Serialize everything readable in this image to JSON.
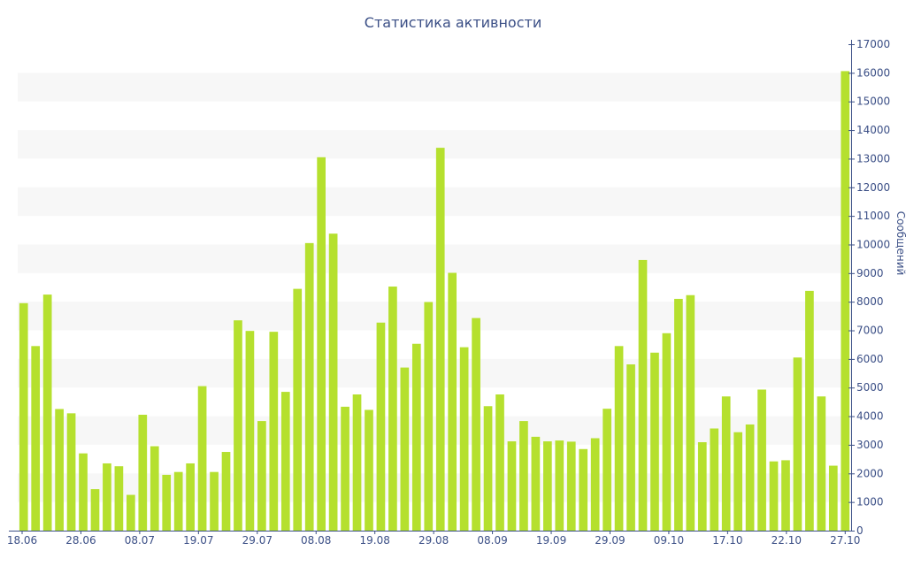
{
  "chart_data": {
    "type": "bar",
    "title": "Статистика активности",
    "xlabel": "",
    "ylabel": "Сообщений",
    "ylim": [
      0,
      17000
    ],
    "y_ticks": [
      0,
      1000,
      2000,
      3000,
      4000,
      5000,
      6000,
      7000,
      8000,
      9000,
      10000,
      11000,
      12000,
      13000,
      14000,
      15000,
      16000,
      17000
    ],
    "x_tick_labels": [
      "18.06",
      "28.06",
      "08.07",
      "19.07",
      "29.07",
      "08.08",
      "19.08",
      "29.08",
      "08.09",
      "19.09",
      "29.09",
      "09.10",
      "17.10",
      "22.10",
      "27.10"
    ],
    "y_axis_side": "right",
    "grid": "alternating horizontal bands",
    "legend": "none",
    "bar_color": "#b5e02e",
    "band_color": "#f7f7f7",
    "axis_color": "#3b4f86",
    "values": [
      7950,
      6450,
      8250,
      4250,
      4100,
      2700,
      1450,
      2350,
      2250,
      1250,
      4050,
      2950,
      1950,
      2050,
      2350,
      5050,
      2050,
      2750,
      7350,
      6980,
      3830,
      6950,
      4850,
      8450,
      10050,
      13050,
      10380,
      4330,
      4760,
      4220,
      7270,
      8530,
      5700,
      6530,
      7990,
      13380,
      9010,
      6410,
      7430,
      4350,
      4760,
      3120,
      3830,
      3280,
      3120,
      3150,
      3110,
      2850,
      3230,
      4260,
      6450,
      5810,
      9460,
      6220,
      6900,
      8100,
      8230,
      3090,
      3570,
      4690,
      3440,
      3710,
      4930,
      2420,
      2460,
      6050,
      8380,
      4690,
      2270,
      16060
    ]
  }
}
